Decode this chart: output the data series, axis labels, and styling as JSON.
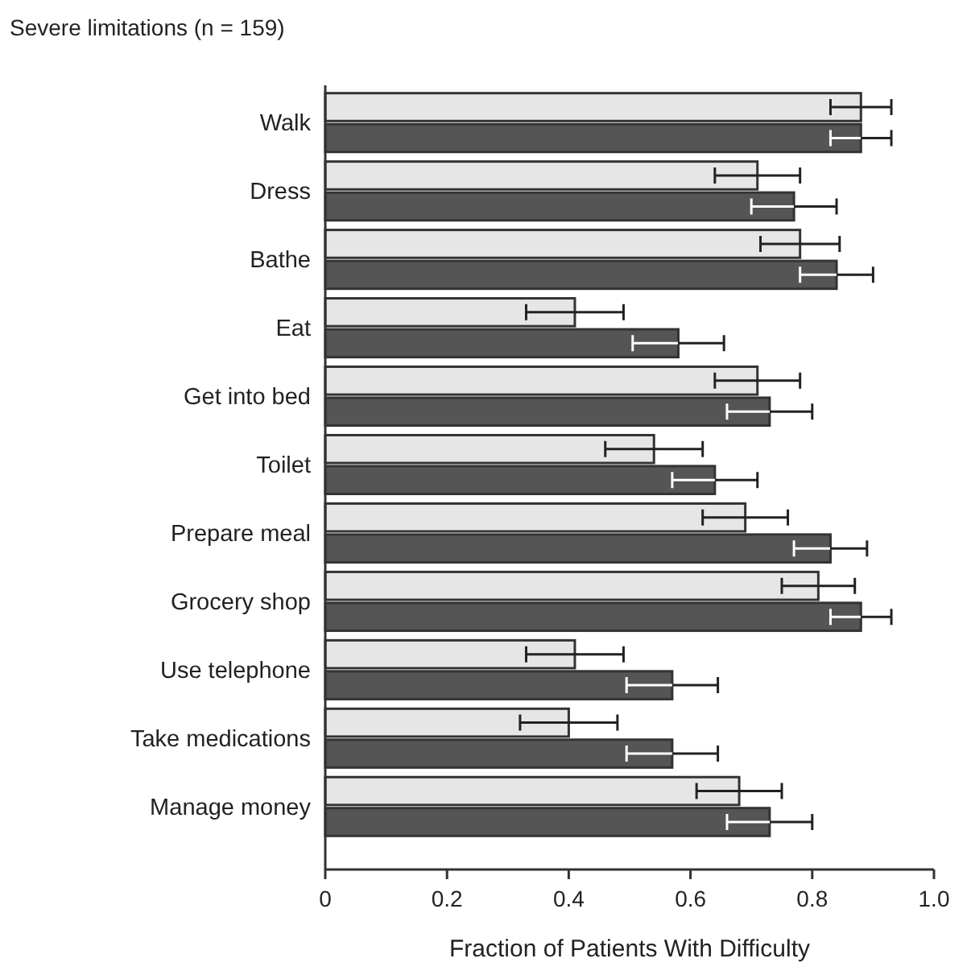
{
  "chart_data": {
    "type": "bar",
    "orientation": "horizontal",
    "title": "Severe limitations (n = 159)",
    "xlabel": "Fraction of Patients With Difficulty",
    "categories": [
      "Walk",
      "Dress",
      "Bathe",
      "Eat",
      "Get into bed",
      "Toilet",
      "Prepare meal",
      "Grocery shop",
      "Use telephone",
      "Take medications",
      "Manage money"
    ],
    "series": [
      {
        "color": "#e6e6e6",
        "values": [
          0.88,
          0.71,
          0.78,
          0.41,
          0.71,
          0.54,
          0.69,
          0.81,
          0.41,
          0.4,
          0.68
        ],
        "errors": [
          0.05,
          0.07,
          0.065,
          0.08,
          0.07,
          0.08,
          0.07,
          0.06,
          0.08,
          0.08,
          0.07
        ]
      },
      {
        "color": "#555555",
        "values": [
          0.88,
          0.77,
          0.84,
          0.58,
          0.73,
          0.64,
          0.83,
          0.88,
          0.57,
          0.57,
          0.73
        ],
        "errors": [
          0.05,
          0.07,
          0.06,
          0.075,
          0.07,
          0.07,
          0.06,
          0.05,
          0.075,
          0.075,
          0.07
        ]
      }
    ],
    "xlim": [
      0,
      1
    ],
    "xticks": [
      0,
      0.2,
      0.4,
      0.6,
      0.8,
      {
        "value": 1,
        "label": "1.0"
      }
    ],
    "grid": false
  }
}
